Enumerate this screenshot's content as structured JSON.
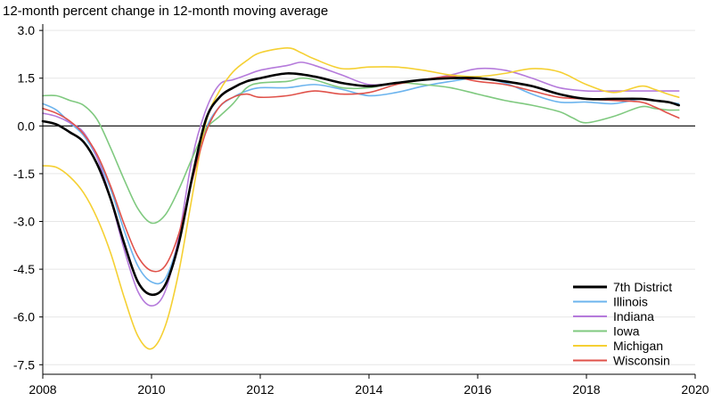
{
  "chart_data": {
    "type": "line",
    "title": "12-month percent change in 12-month moving average",
    "xlabel": "",
    "ylabel": "",
    "xlim": [
      2008,
      2020
    ],
    "ylim": [
      -7.8,
      3.2
    ],
    "x_ticks": [
      2008,
      2010,
      2012,
      2014,
      2016,
      2018,
      2020
    ],
    "x_tick_labels": [
      "2008",
      "2010",
      "2012",
      "2014",
      "2016",
      "2018",
      "2020"
    ],
    "y_ticks": [
      3.0,
      1.5,
      0.0,
      -1.5,
      -3.0,
      -4.5,
      -6.0,
      -7.5
    ],
    "y_tick_labels": [
      "3.0",
      "1.5",
      "0.0",
      "-1.5",
      "-3.0",
      "-4.5",
      "-6.0",
      "-7.5"
    ],
    "grid": "horizontal",
    "zero_line": true,
    "legend_position": "bottom-right",
    "series": [
      {
        "name": "Illinois",
        "color": "#6CB4EE",
        "width": 1.6,
        "points": [
          [
            2008.0,
            0.7
          ],
          [
            2008.25,
            0.5
          ],
          [
            2008.5,
            0.1
          ],
          [
            2008.75,
            -0.3
          ],
          [
            2009.0,
            -1.0
          ],
          [
            2009.25,
            -2.0
          ],
          [
            2009.5,
            -3.3
          ],
          [
            2009.75,
            -4.4
          ],
          [
            2010.0,
            -4.9
          ],
          [
            2010.25,
            -4.8
          ],
          [
            2010.5,
            -3.6
          ],
          [
            2010.75,
            -1.6
          ],
          [
            2011.0,
            -0.1
          ],
          [
            2011.25,
            0.6
          ],
          [
            2011.5,
            0.9
          ],
          [
            2011.75,
            1.1
          ],
          [
            2012.0,
            1.2
          ],
          [
            2012.5,
            1.2
          ],
          [
            2013.0,
            1.3
          ],
          [
            2013.5,
            1.15
          ],
          [
            2014.0,
            0.95
          ],
          [
            2014.5,
            1.05
          ],
          [
            2015.0,
            1.25
          ],
          [
            2015.5,
            1.4
          ],
          [
            2016.0,
            1.5
          ],
          [
            2016.5,
            1.35
          ],
          [
            2017.0,
            1.0
          ],
          [
            2017.5,
            0.75
          ],
          [
            2018.0,
            0.75
          ],
          [
            2018.5,
            0.7
          ],
          [
            2019.0,
            0.85
          ],
          [
            2019.25,
            0.8
          ],
          [
            2019.5,
            0.75
          ],
          [
            2019.7,
            0.7
          ]
        ]
      },
      {
        "name": "Indiana",
        "color": "#B57ADB",
        "width": 1.6,
        "points": [
          [
            2008.0,
            0.4
          ],
          [
            2008.25,
            0.3
          ],
          [
            2008.5,
            0.1
          ],
          [
            2008.75,
            -0.2
          ],
          [
            2009.0,
            -1.0
          ],
          [
            2009.25,
            -2.3
          ],
          [
            2009.5,
            -3.9
          ],
          [
            2009.75,
            -5.2
          ],
          [
            2010.0,
            -5.65
          ],
          [
            2010.25,
            -5.2
          ],
          [
            2010.5,
            -3.5
          ],
          [
            2010.75,
            -1.0
          ],
          [
            2011.0,
            0.5
          ],
          [
            2011.25,
            1.3
          ],
          [
            2011.5,
            1.45
          ],
          [
            2011.75,
            1.6
          ],
          [
            2012.0,
            1.75
          ],
          [
            2012.5,
            1.9
          ],
          [
            2012.75,
            2.0
          ],
          [
            2013.0,
            1.9
          ],
          [
            2013.5,
            1.6
          ],
          [
            2014.0,
            1.3
          ],
          [
            2014.5,
            1.35
          ],
          [
            2015.0,
            1.45
          ],
          [
            2015.5,
            1.6
          ],
          [
            2016.0,
            1.8
          ],
          [
            2016.5,
            1.75
          ],
          [
            2017.0,
            1.5
          ],
          [
            2017.5,
            1.2
          ],
          [
            2018.0,
            1.1
          ],
          [
            2018.5,
            1.1
          ],
          [
            2019.0,
            1.1
          ],
          [
            2019.5,
            1.1
          ],
          [
            2019.7,
            1.1
          ]
        ]
      },
      {
        "name": "Iowa",
        "color": "#7FC97F",
        "width": 1.6,
        "points": [
          [
            2008.0,
            0.95
          ],
          [
            2008.25,
            0.95
          ],
          [
            2008.5,
            0.8
          ],
          [
            2008.75,
            0.65
          ],
          [
            2009.0,
            0.2
          ],
          [
            2009.25,
            -0.7
          ],
          [
            2009.5,
            -1.7
          ],
          [
            2009.75,
            -2.6
          ],
          [
            2010.0,
            -3.05
          ],
          [
            2010.25,
            -2.8
          ],
          [
            2010.5,
            -2.0
          ],
          [
            2010.75,
            -1.0
          ],
          [
            2011.0,
            -0.1
          ],
          [
            2011.25,
            0.3
          ],
          [
            2011.5,
            0.7
          ],
          [
            2011.75,
            1.2
          ],
          [
            2012.0,
            1.35
          ],
          [
            2012.5,
            1.4
          ],
          [
            2012.75,
            1.5
          ],
          [
            2013.0,
            1.45
          ],
          [
            2013.5,
            1.2
          ],
          [
            2014.0,
            1.2
          ],
          [
            2014.5,
            1.35
          ],
          [
            2015.0,
            1.3
          ],
          [
            2015.5,
            1.2
          ],
          [
            2016.0,
            1.0
          ],
          [
            2016.5,
            0.8
          ],
          [
            2017.0,
            0.65
          ],
          [
            2017.5,
            0.45
          ],
          [
            2017.75,
            0.25
          ],
          [
            2018.0,
            0.1
          ],
          [
            2018.5,
            0.3
          ],
          [
            2019.0,
            0.6
          ],
          [
            2019.25,
            0.55
          ],
          [
            2019.5,
            0.5
          ],
          [
            2019.7,
            0.5
          ]
        ]
      },
      {
        "name": "Michigan",
        "color": "#F5D033",
        "width": 1.6,
        "points": [
          [
            2008.0,
            -1.25
          ],
          [
            2008.25,
            -1.3
          ],
          [
            2008.5,
            -1.6
          ],
          [
            2008.75,
            -2.1
          ],
          [
            2009.0,
            -2.9
          ],
          [
            2009.25,
            -4.0
          ],
          [
            2009.5,
            -5.4
          ],
          [
            2009.75,
            -6.6
          ],
          [
            2010.0,
            -7.0
          ],
          [
            2010.25,
            -6.3
          ],
          [
            2010.5,
            -4.6
          ],
          [
            2010.75,
            -2.2
          ],
          [
            2011.0,
            0.1
          ],
          [
            2011.25,
            1.1
          ],
          [
            2011.5,
            1.7
          ],
          [
            2011.75,
            2.05
          ],
          [
            2012.0,
            2.3
          ],
          [
            2012.5,
            2.45
          ],
          [
            2012.75,
            2.3
          ],
          [
            2013.0,
            2.1
          ],
          [
            2013.5,
            1.8
          ],
          [
            2014.0,
            1.85
          ],
          [
            2014.5,
            1.85
          ],
          [
            2015.0,
            1.75
          ],
          [
            2015.5,
            1.6
          ],
          [
            2016.0,
            1.55
          ],
          [
            2016.5,
            1.65
          ],
          [
            2017.0,
            1.8
          ],
          [
            2017.5,
            1.7
          ],
          [
            2018.0,
            1.3
          ],
          [
            2018.5,
            1.05
          ],
          [
            2019.0,
            1.25
          ],
          [
            2019.25,
            1.15
          ],
          [
            2019.5,
            1.0
          ],
          [
            2019.7,
            0.9
          ]
        ]
      },
      {
        "name": "Wisconsin",
        "color": "#E0524A",
        "width": 1.6,
        "points": [
          [
            2008.0,
            0.55
          ],
          [
            2008.25,
            0.4
          ],
          [
            2008.5,
            0.15
          ],
          [
            2008.75,
            -0.25
          ],
          [
            2009.0,
            -0.9
          ],
          [
            2009.25,
            -1.9
          ],
          [
            2009.5,
            -3.1
          ],
          [
            2009.75,
            -4.1
          ],
          [
            2010.0,
            -4.55
          ],
          [
            2010.25,
            -4.4
          ],
          [
            2010.5,
            -3.4
          ],
          [
            2010.75,
            -1.7
          ],
          [
            2011.0,
            -0.2
          ],
          [
            2011.25,
            0.6
          ],
          [
            2011.5,
            0.9
          ],
          [
            2011.75,
            1.0
          ],
          [
            2012.0,
            0.9
          ],
          [
            2012.5,
            0.95
          ],
          [
            2013.0,
            1.1
          ],
          [
            2013.5,
            1.0
          ],
          [
            2014.0,
            1.05
          ],
          [
            2014.5,
            1.3
          ],
          [
            2015.0,
            1.45
          ],
          [
            2015.5,
            1.55
          ],
          [
            2016.0,
            1.4
          ],
          [
            2016.5,
            1.3
          ],
          [
            2017.0,
            1.1
          ],
          [
            2017.5,
            0.9
          ],
          [
            2018.0,
            0.85
          ],
          [
            2018.5,
            0.8
          ],
          [
            2019.0,
            0.75
          ],
          [
            2019.25,
            0.6
          ],
          [
            2019.5,
            0.4
          ],
          [
            2019.7,
            0.25
          ]
        ]
      },
      {
        "name": "7th District",
        "color": "#000000",
        "width": 2.6,
        "points": [
          [
            2008.0,
            0.15
          ],
          [
            2008.25,
            0.05
          ],
          [
            2008.5,
            -0.2
          ],
          [
            2008.75,
            -0.5
          ],
          [
            2009.0,
            -1.2
          ],
          [
            2009.25,
            -2.3
          ],
          [
            2009.5,
            -3.7
          ],
          [
            2009.75,
            -4.9
          ],
          [
            2010.0,
            -5.3
          ],
          [
            2010.25,
            -5.0
          ],
          [
            2010.5,
            -3.7
          ],
          [
            2010.75,
            -1.6
          ],
          [
            2011.0,
            0.2
          ],
          [
            2011.25,
            0.9
          ],
          [
            2011.5,
            1.2
          ],
          [
            2011.75,
            1.4
          ],
          [
            2012.0,
            1.5
          ],
          [
            2012.5,
            1.65
          ],
          [
            2013.0,
            1.55
          ],
          [
            2013.5,
            1.35
          ],
          [
            2014.0,
            1.25
          ],
          [
            2014.5,
            1.35
          ],
          [
            2015.0,
            1.45
          ],
          [
            2015.5,
            1.5
          ],
          [
            2016.0,
            1.5
          ],
          [
            2016.5,
            1.4
          ],
          [
            2017.0,
            1.25
          ],
          [
            2017.5,
            1.0
          ],
          [
            2018.0,
            0.85
          ],
          [
            2018.5,
            0.85
          ],
          [
            2019.0,
            0.85
          ],
          [
            2019.25,
            0.8
          ],
          [
            2019.5,
            0.75
          ],
          [
            2019.7,
            0.65
          ]
        ]
      }
    ],
    "legend_order": [
      "7th District",
      "Illinois",
      "Indiana",
      "Iowa",
      "Michigan",
      "Wisconsin"
    ]
  }
}
